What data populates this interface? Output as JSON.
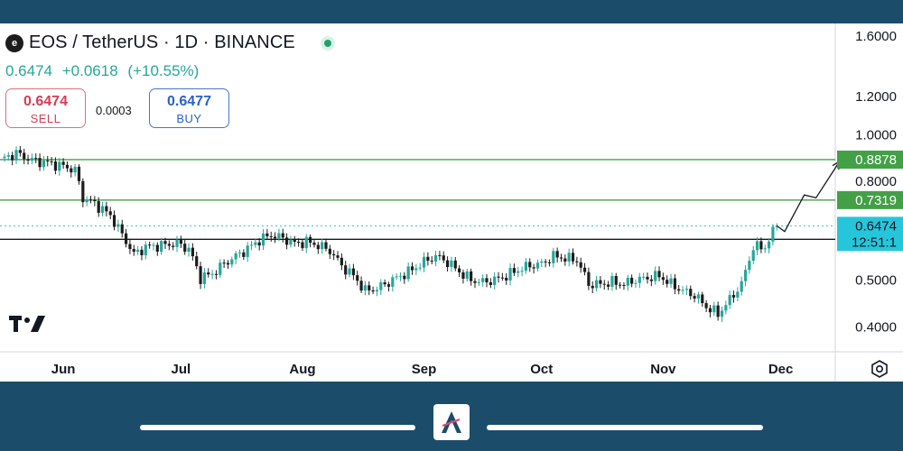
{
  "header": {
    "symbol": "EOS / TetherUS · 1D · BINANCE",
    "last": "0.6474",
    "change": "+0.0618",
    "change_pct": "(+10.55%)"
  },
  "trade": {
    "sell_price": "0.6474",
    "sell_label": "SELL",
    "spread": "0.0003",
    "buy_price": "0.6477",
    "buy_label": "BUY"
  },
  "colors": {
    "up": "#26a69a",
    "down": "#1c1c1c",
    "resistance": "#43a047",
    "support": "#131722",
    "price_line": "#26c6da"
  },
  "icons": {
    "symbol_logo": "eos-logo-icon",
    "live_status": "market-open-dot-icon",
    "settings": "settings-gear-icon",
    "watermark": "tradingview-logo-icon",
    "brand": "brand-logo-icon"
  },
  "chart_data": {
    "type": "candlestick",
    "y_scale": "log",
    "ylim": [
      0.355,
      1.7
    ],
    "x_start": "2023-05-17",
    "x_end": "2023-12-08",
    "grid": false,
    "y_ticks": [
      "1.6000",
      "1.2000",
      "1.0000",
      "0.8000",
      "0.5000",
      "0.4000"
    ],
    "x_ticks": [
      {
        "label": "Jun",
        "date": "2023-06-01"
      },
      {
        "label": "Jul",
        "date": "2023-07-01"
      },
      {
        "label": "Aug",
        "date": "2023-08-01"
      },
      {
        "label": "Sep",
        "date": "2023-09-01"
      },
      {
        "label": "Oct",
        "date": "2023-10-01"
      },
      {
        "label": "Nov",
        "date": "2023-11-01"
      },
      {
        "label": "Dec",
        "date": "2023-12-01"
      }
    ],
    "closes": [
      {
        "date": "2023-05-17",
        "close": 0.895
      },
      {
        "date": "2023-05-20",
        "close": 0.915
      },
      {
        "date": "2023-05-24",
        "close": 0.885
      },
      {
        "date": "2023-05-28",
        "close": 0.875
      },
      {
        "date": "2023-06-01",
        "close": 0.86
      },
      {
        "date": "2023-06-04",
        "close": 0.845
      },
      {
        "date": "2023-06-06",
        "close": 0.74
      },
      {
        "date": "2023-06-09",
        "close": 0.72
      },
      {
        "date": "2023-06-13",
        "close": 0.68
      },
      {
        "date": "2023-06-16",
        "close": 0.62
      },
      {
        "date": "2023-06-19",
        "close": 0.565
      },
      {
        "date": "2023-06-22",
        "close": 0.585
      },
      {
        "date": "2023-06-26",
        "close": 0.59
      },
      {
        "date": "2023-06-30",
        "close": 0.595
      },
      {
        "date": "2023-07-03",
        "close": 0.58
      },
      {
        "date": "2023-07-06",
        "close": 0.505
      },
      {
        "date": "2023-07-09",
        "close": 0.515
      },
      {
        "date": "2023-07-12",
        "close": 0.54
      },
      {
        "date": "2023-07-15",
        "close": 0.56
      },
      {
        "date": "2023-07-18",
        "close": 0.58
      },
      {
        "date": "2023-07-21",
        "close": 0.605
      },
      {
        "date": "2023-07-24",
        "close": 0.62
      },
      {
        "date": "2023-07-27",
        "close": 0.61
      },
      {
        "date": "2023-07-30",
        "close": 0.595
      },
      {
        "date": "2023-08-02",
        "close": 0.6
      },
      {
        "date": "2023-08-05",
        "close": 0.59
      },
      {
        "date": "2023-08-08",
        "close": 0.575
      },
      {
        "date": "2023-08-11",
        "close": 0.535
      },
      {
        "date": "2023-08-14",
        "close": 0.51
      },
      {
        "date": "2023-08-17",
        "close": 0.475
      },
      {
        "date": "2023-08-20",
        "close": 0.48
      },
      {
        "date": "2023-08-23",
        "close": 0.495
      },
      {
        "date": "2023-08-26",
        "close": 0.51
      },
      {
        "date": "2023-08-29",
        "close": 0.525
      },
      {
        "date": "2023-09-01",
        "close": 0.545
      },
      {
        "date": "2023-09-04",
        "close": 0.56
      },
      {
        "date": "2023-09-07",
        "close": 0.545
      },
      {
        "date": "2023-09-10",
        "close": 0.52
      },
      {
        "date": "2023-09-13",
        "close": 0.5
      },
      {
        "date": "2023-09-16",
        "close": 0.495
      },
      {
        "date": "2023-09-19",
        "close": 0.5
      },
      {
        "date": "2023-09-22",
        "close": 0.51
      },
      {
        "date": "2023-09-25",
        "close": 0.525
      },
      {
        "date": "2023-09-28",
        "close": 0.535
      },
      {
        "date": "2023-10-01",
        "close": 0.54
      },
      {
        "date": "2023-10-04",
        "close": 0.56
      },
      {
        "date": "2023-10-07",
        "close": 0.555
      },
      {
        "date": "2023-10-10",
        "close": 0.55
      },
      {
        "date": "2023-10-13",
        "close": 0.49
      },
      {
        "date": "2023-10-16",
        "close": 0.49
      },
      {
        "date": "2023-10-19",
        "close": 0.495
      },
      {
        "date": "2023-10-22",
        "close": 0.49
      },
      {
        "date": "2023-10-25",
        "close": 0.5
      },
      {
        "date": "2023-10-28",
        "close": 0.505
      },
      {
        "date": "2023-10-31",
        "close": 0.51
      },
      {
        "date": "2023-11-03",
        "close": 0.49
      },
      {
        "date": "2023-11-06",
        "close": 0.475
      },
      {
        "date": "2023-11-09",
        "close": 0.465
      },
      {
        "date": "2023-11-12",
        "close": 0.44
      },
      {
        "date": "2023-11-15",
        "close": 0.425
      },
      {
        "date": "2023-11-18",
        "close": 0.455
      },
      {
        "date": "2023-11-21",
        "close": 0.49
      },
      {
        "date": "2023-11-24",
        "close": 0.585
      },
      {
        "date": "2023-11-27",
        "close": 0.585
      },
      {
        "date": "2023-11-30",
        "close": 0.6474
      }
    ],
    "levels": [
      {
        "name": "resistance-2",
        "value": 0.8878,
        "label": "0.8878"
      },
      {
        "name": "resistance-1",
        "value": 0.7319,
        "label": "0.7319"
      },
      {
        "name": "support",
        "value": 0.607,
        "label": "0.6070"
      }
    ],
    "last_price": {
      "value": 0.6474,
      "label": "0.6474",
      "countdown": "12:51:1"
    },
    "projection": [
      {
        "date": "2023-11-30",
        "value": 0.6474
      },
      {
        "date": "2023-12-02",
        "value": 0.63
      },
      {
        "date": "2023-12-07",
        "value": 0.75
      },
      {
        "date": "2023-12-10",
        "value": 0.74
      },
      {
        "date": "2023-12-16",
        "value": 0.88
      }
    ]
  }
}
